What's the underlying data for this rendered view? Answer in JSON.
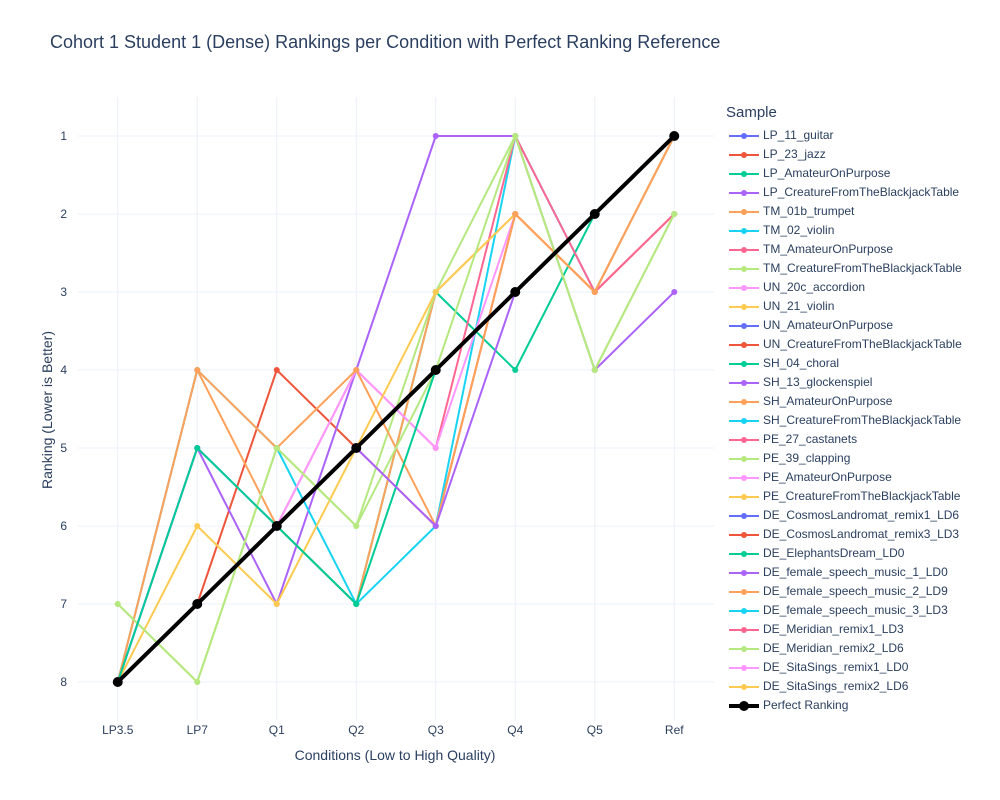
{
  "chart_data": {
    "type": "line",
    "title": "Cohort 1 Student 1 (Dense) Rankings per Condition with Perfect Ranking Reference",
    "xlabel": "Conditions (Low to High Quality)",
    "ylabel": "Ranking (Lower is Better)",
    "categories": [
      "LP3.5",
      "LP7",
      "Q1",
      "Q2",
      "Q3",
      "Q4",
      "Q5",
      "Ref"
    ],
    "ylim": [
      8.5,
      0.5
    ],
    "y_reversed": true,
    "yticks": [
      1,
      2,
      3,
      4,
      5,
      6,
      7,
      8
    ],
    "grid": true,
    "legend": {
      "title": "Sample",
      "placement": "right"
    },
    "series": [
      {
        "name": "LP_11_guitar",
        "color": "#636efa",
        "values": [
          8,
          5,
          6,
          5,
          4,
          3,
          2,
          1
        ]
      },
      {
        "name": "LP_23_jazz",
        "color": "#EF553B",
        "values": [
          8,
          7,
          4,
          5,
          6,
          2,
          3,
          2
        ]
      },
      {
        "name": "LP_AmateurOnPurpose",
        "color": "#00cc96",
        "values": [
          8,
          7,
          6,
          7,
          3,
          4,
          2,
          1
        ]
      },
      {
        "name": "LP_CreatureFromTheBlackjackTable",
        "color": "#ab63fa",
        "values": [
          8,
          5,
          7,
          4,
          1,
          1,
          4,
          3
        ]
      },
      {
        "name": "TM_01b_trumpet",
        "color": "#FFA15A",
        "values": [
          8,
          4,
          6,
          7,
          3,
          2,
          3,
          1
        ]
      },
      {
        "name": "TM_02_violin",
        "color": "#19d3f3",
        "values": [
          8,
          4,
          5,
          7,
          6,
          1,
          3,
          1
        ]
      },
      {
        "name": "TM_AmateurOnPurpose",
        "color": "#FF6692",
        "values": [
          8,
          7,
          6,
          4,
          5,
          1,
          3,
          2
        ]
      },
      {
        "name": "TM_CreatureFromTheBlackjackTable",
        "color": "#B6E880",
        "values": [
          7,
          8,
          5,
          6,
          3,
          1,
          4,
          2
        ]
      },
      {
        "name": "UN_20c_accordion",
        "color": "#FF97FF",
        "values": [
          8,
          7,
          6,
          4,
          5,
          2,
          3,
          1
        ]
      },
      {
        "name": "UN_21_violin",
        "color": "#FECB52",
        "values": [
          8,
          6,
          7,
          5,
          3,
          2,
          3,
          1
        ]
      },
      {
        "name": "UN_AmateurOnPurpose",
        "color": "#636efa",
        "values": [
          8,
          7,
          6,
          5,
          4,
          3,
          2,
          1
        ]
      },
      {
        "name": "UN_CreatureFromTheBlackjackTable",
        "color": "#EF553B",
        "values": [
          8,
          7,
          6,
          5,
          4,
          3,
          2,
          1
        ]
      },
      {
        "name": "SH_04_choral",
        "color": "#00cc96",
        "values": [
          8,
          7,
          6,
          5,
          4,
          3,
          2,
          1
        ]
      },
      {
        "name": "SH_13_glockenspiel",
        "color": "#ab63fa",
        "values": [
          8,
          7,
          6,
          5,
          4,
          3,
          2,
          1
        ]
      },
      {
        "name": "SH_AmateurOnPurpose",
        "color": "#FFA15A",
        "values": [
          8,
          4,
          5,
          4,
          6,
          2,
          3,
          1
        ]
      },
      {
        "name": "SH_CreatureFromTheBlackjackTable",
        "color": "#19d3f3",
        "values": [
          8,
          7,
          6,
          5,
          4,
          3,
          2,
          1
        ]
      },
      {
        "name": "PE_27_castanets",
        "color": "#FF6692",
        "values": [
          8,
          7,
          6,
          5,
          4,
          3,
          2,
          1
        ]
      },
      {
        "name": "PE_39_clapping",
        "color": "#B6E880",
        "values": [
          7,
          8,
          5,
          6,
          4,
          1,
          4,
          2
        ]
      },
      {
        "name": "PE_AmateurOnPurpose",
        "color": "#FF97FF",
        "values": [
          8,
          7,
          6,
          5,
          4,
          3,
          2,
          1
        ]
      },
      {
        "name": "PE_CreatureFromTheBlackjackTable",
        "color": "#FECB52",
        "values": [
          8,
          7,
          6,
          5,
          4,
          3,
          2,
          1
        ]
      },
      {
        "name": "DE_CosmosLandromat_remix1_LD6",
        "color": "#636efa",
        "values": [
          8,
          7,
          6,
          5,
          4,
          3,
          2,
          1
        ]
      },
      {
        "name": "DE_CosmosLandromat_remix3_LD3",
        "color": "#EF553B",
        "values": [
          8,
          7,
          6,
          5,
          4,
          3,
          2,
          1
        ]
      },
      {
        "name": "DE_ElephantsDream_LD0",
        "color": "#00cc96",
        "values": [
          8,
          5,
          6,
          7,
          4,
          3,
          2,
          1
        ]
      },
      {
        "name": "DE_female_speech_music_1_LD0",
        "color": "#ab63fa",
        "values": [
          8,
          7,
          6,
          5,
          6,
          3,
          2,
          1
        ]
      },
      {
        "name": "DE_female_speech_music_2_LD9",
        "color": "#FFA15A",
        "values": [
          8,
          7,
          6,
          5,
          4,
          3,
          2,
          1
        ]
      },
      {
        "name": "DE_female_speech_music_3_LD3",
        "color": "#19d3f3",
        "values": [
          8,
          7,
          6,
          5,
          4,
          3,
          2,
          1
        ]
      },
      {
        "name": "DE_Meridian_remix1_LD3",
        "color": "#FF6692",
        "values": [
          8,
          7,
          6,
          5,
          4,
          3,
          2,
          1
        ]
      },
      {
        "name": "DE_Meridian_remix2_LD6",
        "color": "#B6E880",
        "values": [
          8,
          7,
          6,
          5,
          4,
          3,
          2,
          1
        ]
      },
      {
        "name": "DE_SitaSings_remix1_LD0",
        "color": "#FF97FF",
        "values": [
          8,
          7,
          6,
          5,
          4,
          3,
          2,
          1
        ]
      },
      {
        "name": "DE_SitaSings_remix2_LD6",
        "color": "#FECB52",
        "values": [
          8,
          7,
          6,
          5,
          4,
          3,
          2,
          1
        ]
      },
      {
        "name": "Perfect Ranking",
        "color": "#000000",
        "values": [
          8,
          7,
          6,
          5,
          4,
          3,
          2,
          1
        ],
        "emphasis": true
      }
    ]
  }
}
